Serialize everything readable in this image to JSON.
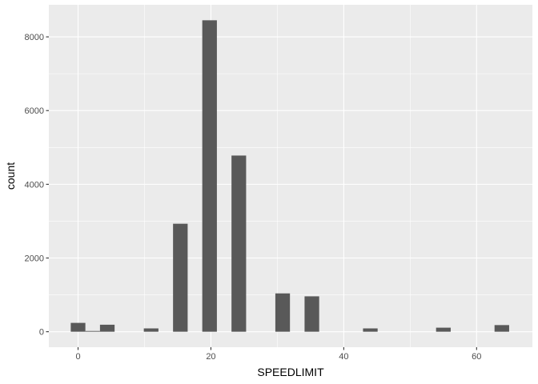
{
  "chart_data": {
    "type": "bar",
    "xlabel": "SPEEDLIMIT",
    "ylabel": "count",
    "xlim": [
      -4.4,
      68.4
    ],
    "ylim": [
      -420,
      8870
    ],
    "x_ticks": [
      {
        "value": 0,
        "label": "0"
      },
      {
        "value": 20,
        "label": "20"
      },
      {
        "value": 40,
        "label": "40"
      },
      {
        "value": 60,
        "label": "60"
      }
    ],
    "x_minor_ticks": [
      10,
      30,
      50
    ],
    "y_ticks": [
      {
        "value": 0,
        "label": "0"
      },
      {
        "value": 2000,
        "label": "2000"
      },
      {
        "value": 4000,
        "label": "4000"
      },
      {
        "value": 6000,
        "label": "6000"
      },
      {
        "value": 8000,
        "label": "8000"
      }
    ],
    "y_minor_ticks": [
      1000,
      3000,
      5000,
      7000
    ],
    "bin_width": 2.2,
    "bins": [
      {
        "x": 0,
        "count": 240
      },
      {
        "x": 2.2,
        "count": 20
      },
      {
        "x": 4.4,
        "count": 190
      },
      {
        "x": 11,
        "count": 90
      },
      {
        "x": 15.4,
        "count": 2930
      },
      {
        "x": 19.8,
        "count": 8450
      },
      {
        "x": 24.2,
        "count": 4780
      },
      {
        "x": 30.8,
        "count": 1040
      },
      {
        "x": 35.2,
        "count": 960
      },
      {
        "x": 44,
        "count": 90
      },
      {
        "x": 55,
        "count": 110
      },
      {
        "x": 63.8,
        "count": 180
      }
    ],
    "bar_color": "#595959",
    "panel_color": "#ebebeb",
    "grid_color": "#ffffff",
    "grid": true
  }
}
